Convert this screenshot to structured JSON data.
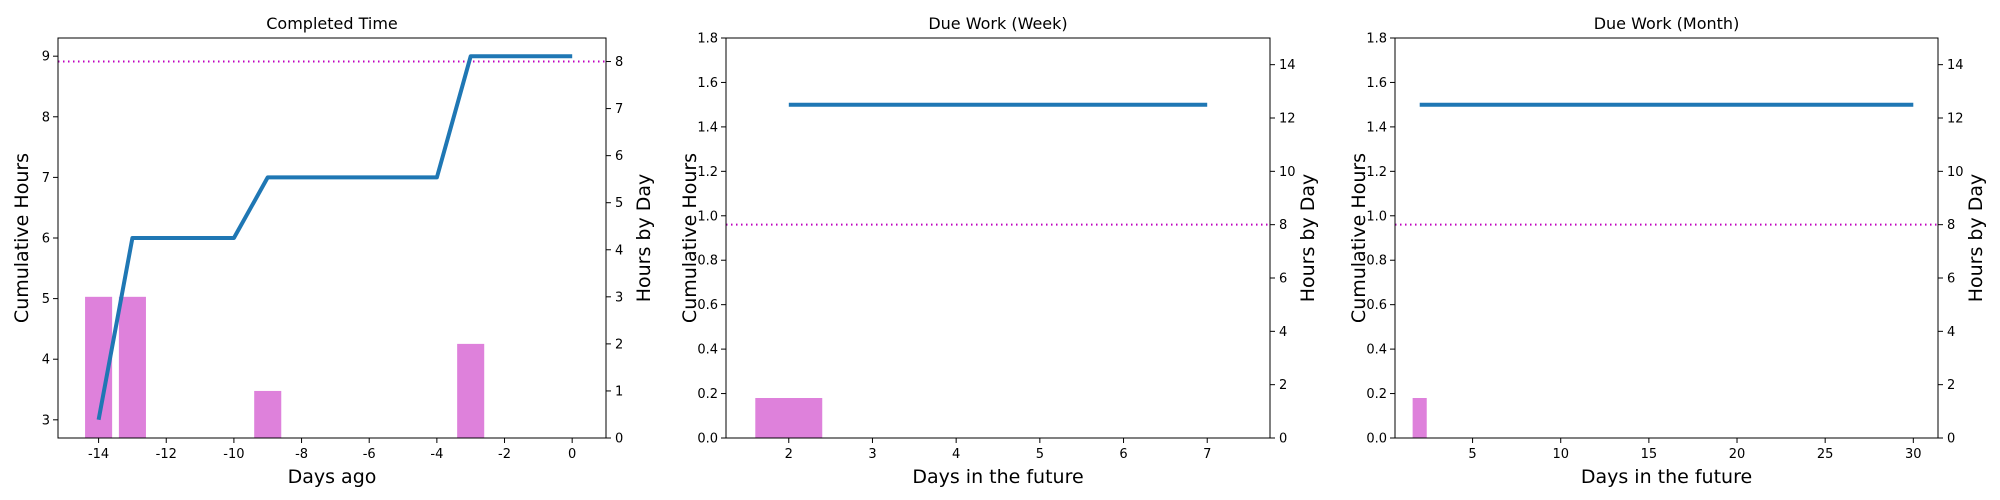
{
  "chart_data": [
    {
      "type": "line+bar",
      "title": "Completed Time",
      "xlabel": "Days ago",
      "ylabel_left": "Cumulative Hours",
      "ylabel_right": "Hours by Day",
      "xlim": [
        -15.2,
        1.0
      ],
      "ylim_left": [
        2.7,
        9.3
      ],
      "ylim_right": [
        0,
        8.5
      ],
      "xticks": [
        -14,
        -12,
        -10,
        -8,
        -6,
        -4,
        -2,
        0
      ],
      "yticks_left": [
        3,
        4,
        5,
        6,
        7,
        8,
        9
      ],
      "yticks_right": [
        0,
        1,
        2,
        3,
        4,
        5,
        6,
        7,
        8
      ],
      "line": {
        "color": "#1f77b4",
        "x": [
          -14,
          -13,
          -10,
          -9,
          -4,
          -3,
          0
        ],
        "y": [
          3,
          6,
          6,
          7,
          7,
          9,
          9
        ]
      },
      "bars": {
        "color": "#da70d6",
        "width": 0.8,
        "x": [
          -14,
          -13,
          -9,
          -3
        ],
        "values": [
          3,
          3,
          1,
          2
        ]
      },
      "reference_line": {
        "axis": "right",
        "value": 8,
        "color": "#bf00bf",
        "style": "dotted"
      },
      "grid": false
    },
    {
      "type": "line+bar",
      "title": "Due Work (Week)",
      "xlabel": "Days in the future",
      "ylabel_left": "Cumulative Hours",
      "ylabel_right": "Hours by Day",
      "xlim": [
        1.25,
        7.75
      ],
      "ylim_left": [
        0,
        1.8
      ],
      "ylim_right": [
        0,
        15
      ],
      "xticks": [
        2,
        3,
        4,
        5,
        6,
        7
      ],
      "yticks_left": [
        0.0,
        0.2,
        0.4,
        0.6,
        0.8,
        1.0,
        1.2,
        1.4,
        1.6,
        1.8
      ],
      "yticks_right": [
        0,
        2,
        4,
        6,
        8,
        10,
        12,
        14
      ],
      "line": {
        "color": "#1f77b4",
        "x": [
          2,
          7
        ],
        "y": [
          1.5,
          1.5
        ]
      },
      "bars": {
        "color": "#da70d6",
        "width": 0.8,
        "x": [
          2
        ],
        "values": [
          1.5
        ]
      },
      "reference_line": {
        "axis": "right",
        "value": 8,
        "color": "#bf00bf",
        "style": "dotted"
      },
      "grid": false
    },
    {
      "type": "line+bar",
      "title": "Due Work (Month)",
      "xlabel": "Days in the future",
      "ylabel_left": "Cumulative Hours",
      "ylabel_right": "Hours by Day",
      "xlim": [
        0.6,
        31.4
      ],
      "ylim_left": [
        0,
        1.8
      ],
      "ylim_right": [
        0,
        15
      ],
      "xticks": [
        5,
        10,
        15,
        20,
        25,
        30
      ],
      "yticks_left": [
        0.0,
        0.2,
        0.4,
        0.6,
        0.8,
        1.0,
        1.2,
        1.4,
        1.6,
        1.8
      ],
      "yticks_right": [
        0,
        2,
        4,
        6,
        8,
        10,
        12,
        14
      ],
      "line": {
        "color": "#1f77b4",
        "x": [
          2,
          30
        ],
        "y": [
          1.5,
          1.5
        ]
      },
      "bars": {
        "color": "#da70d6",
        "width": 0.8,
        "x": [
          2
        ],
        "values": [
          1.5
        ]
      },
      "reference_line": {
        "axis": "right",
        "value": 8,
        "color": "#bf00bf",
        "style": "dotted"
      },
      "grid": false
    }
  ]
}
